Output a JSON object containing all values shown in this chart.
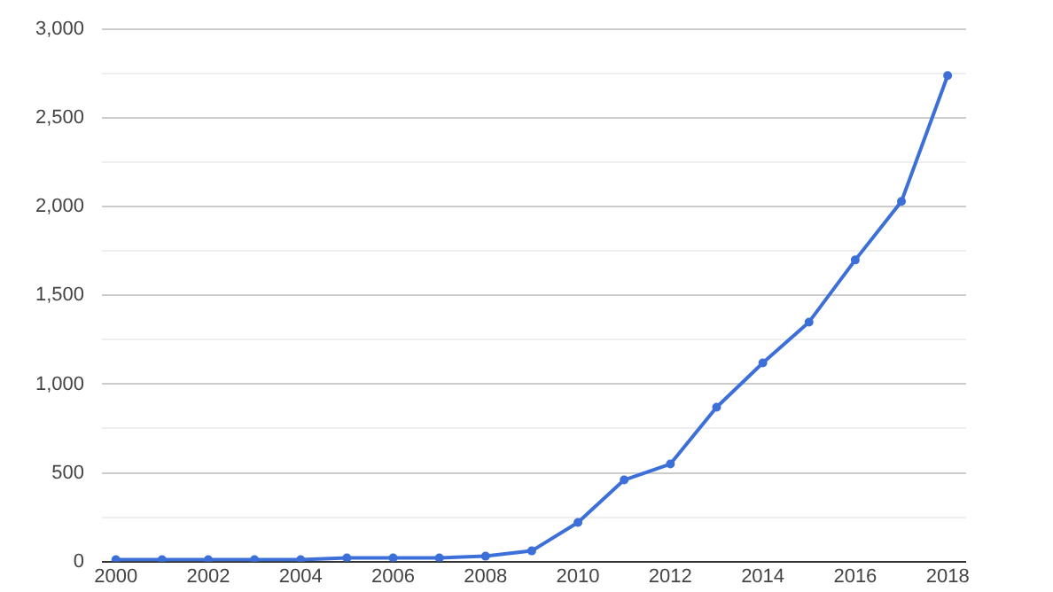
{
  "chart_data": {
    "type": "line",
    "x": [
      2000,
      2001,
      2002,
      2003,
      2004,
      2005,
      2006,
      2007,
      2008,
      2009,
      2010,
      2011,
      2012,
      2013,
      2014,
      2015,
      2016,
      2017,
      2018
    ],
    "series": [
      {
        "color": "#3d6fd9",
        "values": [
          10,
          10,
          10,
          10,
          10,
          20,
          20,
          20,
          30,
          60,
          220,
          460,
          550,
          870,
          1120,
          1350,
          1700,
          2030,
          2740
        ]
      }
    ],
    "xlim": [
      1999.7,
      2018.4
    ],
    "xticks": [
      2000,
      2002,
      2004,
      2006,
      2008,
      2010,
      2012,
      2014,
      2016,
      2018
    ],
    "ylim": [
      0,
      3000
    ],
    "yticks": [
      {
        "value": 0,
        "label": "0"
      },
      {
        "value": 250,
        "label": null
      },
      {
        "value": 500,
        "label": "500"
      },
      {
        "value": 750,
        "label": null
      },
      {
        "value": 1000,
        "label": "1,000"
      },
      {
        "value": 1250,
        "label": null
      },
      {
        "value": 1500,
        "label": "1,500"
      },
      {
        "value": 1750,
        "label": null
      },
      {
        "value": 2000,
        "label": "2,000"
      },
      {
        "value": 2250,
        "label": null
      },
      {
        "value": 2500,
        "label": "2,500"
      },
      {
        "value": 2750,
        "label": null
      },
      {
        "value": 3000,
        "label": "3,000"
      }
    ],
    "grid": "y",
    "legend": false,
    "marker": "circle",
    "line_style": "solid"
  }
}
